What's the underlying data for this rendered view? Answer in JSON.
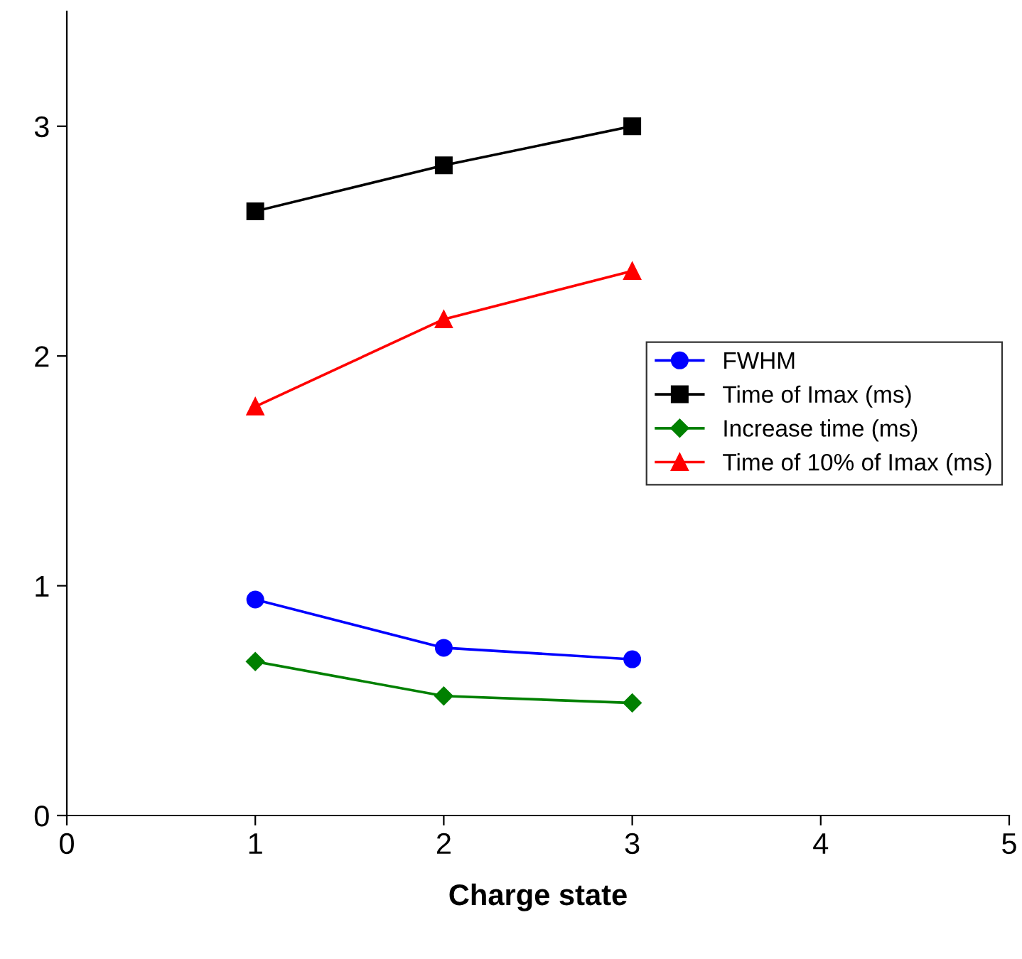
{
  "chart_data": {
    "type": "line",
    "xlabel": "Charge state",
    "x": [
      1,
      2,
      3
    ],
    "series": [
      {
        "name": "FWHM",
        "color": "#0000ff",
        "marker": "circle",
        "values": [
          0.94,
          0.73,
          0.68
        ]
      },
      {
        "name": "Time of Imax (ms)",
        "color": "#000000",
        "marker": "square",
        "values": [
          2.63,
          2.83,
          3.0
        ]
      },
      {
        "name": "Increase time (ms)",
        "color": "#008000",
        "marker": "diamond",
        "values": [
          0.67,
          0.52,
          0.49
        ]
      },
      {
        "name": "Time of 10% of Imax (ms)",
        "color": "#ff0000",
        "marker": "triangle",
        "values": [
          1.78,
          2.16,
          2.37
        ]
      }
    ],
    "xlim": [
      0,
      5
    ],
    "xticks": [
      0,
      1,
      2,
      3,
      4,
      5
    ],
    "ylim": [
      0,
      3.5
    ],
    "yticks": [
      0,
      1,
      2,
      3
    ],
    "grid": false,
    "legend": "center right",
    "line_style": "solid"
  }
}
